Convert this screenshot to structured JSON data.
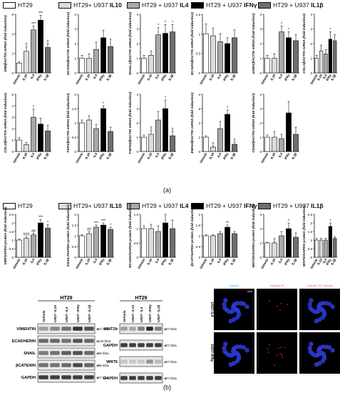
{
  "colors": {
    "ht29": "#ffffff",
    "il10": "#dcdcdc",
    "il4": "#a8a8a8",
    "ifng": "#000000",
    "il1b": "#6e6e6e",
    "fluor_blue": "#2a3bd6",
    "fluor_red": "#d42020"
  },
  "legend": [
    {
      "prefix": "HT29",
      "bold": "",
      "color": "#ffffff"
    },
    {
      "prefix": "HT29+ U937 ",
      "bold": "IL10",
      "color": "#dcdcdc"
    },
    {
      "prefix": "HT29 + U937 ",
      "bold": "IL4",
      "color": "#a8a8a8"
    },
    {
      "prefix": "HT29 + U937 ",
      "bold": "IFNγ",
      "color": "#000000"
    },
    {
      "prefix": "HT29 + U937 ",
      "bold": "IL1β",
      "color": "#6e6e6e"
    }
  ],
  "panel_labels": {
    "a": "(a)",
    "b": "(b)"
  },
  "chart_data": [
    {
      "type": "bar",
      "ylabel": "VIM/βACTIN mRNA (fold induction)",
      "categories": [
        "Vehicle",
        "IL10",
        "IL4",
        "IFNγ",
        "IL1β"
      ],
      "values": [
        1.0,
        2.2,
        4.4,
        5.4,
        2.6
      ],
      "errors": [
        0.15,
        0.5,
        0.4,
        0.5,
        0.4
      ],
      "ylim": [
        0,
        6
      ],
      "yticks": [
        0,
        2,
        4,
        6
      ],
      "annotations": [
        "",
        "#",
        "***",
        "***",
        "#"
      ]
    },
    {
      "type": "bar",
      "ylabel": "NCADH/βACTIN mRNA (fold induction)",
      "categories": [
        "Vehicle",
        "IL10",
        "IL4",
        "IFNγ",
        "IL1β"
      ],
      "values": [
        1.0,
        1.0,
        1.6,
        2.4,
        1.8
      ],
      "errors": [
        0.2,
        0.3,
        0.5,
        0.5,
        0.5
      ],
      "ylim": [
        0,
        4
      ],
      "yticks": [
        0,
        1,
        2,
        3,
        4
      ],
      "annotations": [
        "",
        "",
        "",
        "",
        ""
      ]
    },
    {
      "type": "bar",
      "ylabel": "SNAIL1/βACTIN mRNA (fold induction)",
      "categories": [
        "Vehicle",
        "IL10",
        "IL4",
        "IFNγ",
        "IL1β"
      ],
      "values": [
        1.0,
        1.2,
        2.6,
        2.7,
        2.8
      ],
      "errors": [
        0.2,
        0.3,
        0.5,
        0.6,
        0.5
      ],
      "ylim": [
        0,
        4
      ],
      "yticks": [
        0,
        1,
        2,
        3,
        4
      ],
      "annotations": [
        "",
        "",
        "*",
        "*",
        "*"
      ]
    },
    {
      "type": "bar",
      "ylabel": "ECADH/βACTIN mRNA (fold induction)",
      "categories": [
        "Vehicle",
        "IL10",
        "IL4",
        "IFNγ",
        "IL1β"
      ],
      "values": [
        1.0,
        0.95,
        0.8,
        0.75,
        0.9
      ],
      "errors": [
        0.25,
        0.2,
        0.2,
        0.15,
        0.2
      ],
      "ylim": [
        0,
        1.5
      ],
      "yticks": [
        0,
        0.5,
        1.0,
        1.5
      ],
      "annotations": [
        "",
        "",
        "",
        "",
        ""
      ]
    },
    {
      "type": "bar",
      "ylabel": "αSMA/βACTIN mRNA (fold induction)",
      "categories": [
        "Vehicle",
        "IL10",
        "IL4",
        "IFNγ",
        "IL1β"
      ],
      "values": [
        1.0,
        1.0,
        2.8,
        2.4,
        2.2
      ],
      "errors": [
        0.2,
        0.3,
        0.4,
        0.4,
        0.4
      ],
      "ylim": [
        0,
        4
      ],
      "yticks": [
        0,
        1,
        2,
        3,
        4
      ],
      "annotations": [
        "",
        "",
        "*",
        "*",
        ""
      ]
    },
    {
      "type": "bar",
      "ylabel": "COL1/βACTIN mRNA (fold induction)",
      "categories": [
        "Vehicle",
        "IL10",
        "IL4",
        "IFNγ",
        "IL1β"
      ],
      "values": [
        1.0,
        1.5,
        1.3,
        2.3,
        2.2
      ],
      "errors": [
        0.2,
        0.4,
        0.3,
        0.5,
        0.4
      ],
      "ylim": [
        0,
        4
      ],
      "yticks": [
        0,
        1,
        2,
        3,
        4
      ],
      "annotations": [
        "",
        "",
        "",
        "*",
        ""
      ]
    },
    {
      "type": "bar",
      "ylabel": "COL2/βACTIN mRNA (fold induction)",
      "categories": [
        "Vehicle",
        "IL10",
        "IL4",
        "IFNγ",
        "IL1β"
      ],
      "values": [
        1.0,
        0.6,
        3.0,
        2.4,
        1.8
      ],
      "errors": [
        0.2,
        0.2,
        0.7,
        0.5,
        0.5
      ],
      "ylim": [
        0,
        5
      ],
      "yticks": [
        0,
        1,
        2,
        3,
        4,
        5
      ],
      "annotations": [
        "",
        "",
        "*",
        "",
        ""
      ]
    },
    {
      "type": "bar",
      "ylabel": "FSP1/βACTIN mRNA (fold induction)",
      "categories": [
        "Vehicle",
        "IL10",
        "IL4",
        "IFNγ",
        "IL1β"
      ],
      "values": [
        1.0,
        1.1,
        0.8,
        1.5,
        0.7
      ],
      "errors": [
        0.1,
        0.15,
        0.15,
        0.1,
        0.15
      ],
      "ylim": [
        0,
        2.0
      ],
      "yticks": [
        0,
        0.5,
        1.0,
        1.5,
        2.0
      ],
      "annotations": [
        "",
        "",
        "",
        "*",
        ""
      ]
    },
    {
      "type": "bar",
      "ylabel": "FGFR2/βACTIN mRNA (fold induction)",
      "categories": [
        "Vehicle",
        "IL10",
        "IL4",
        "IFNγ",
        "IL1β"
      ],
      "values": [
        1.0,
        1.2,
        2.2,
        3.0,
        1.1
      ],
      "errors": [
        0.15,
        0.3,
        0.6,
        0.6,
        0.3
      ],
      "ylim": [
        0,
        4
      ],
      "yticks": [
        0,
        1,
        2,
        3,
        4
      ],
      "annotations": [
        "",
        "#",
        "",
        "*",
        "#"
      ]
    },
    {
      "type": "bar",
      "ylabel": "EMAH/βACTIN mRNA (fold induction)",
      "categories": [
        "Vehicle",
        "IL10",
        "IL4",
        "IFNγ",
        "IL1β"
      ],
      "values": [
        1.0,
        0.3,
        1.6,
        2.6,
        0.5
      ],
      "errors": [
        0.1,
        0.1,
        0.5,
        0.3,
        0.15
      ],
      "ylim": [
        0,
        4
      ],
      "yticks": [
        0,
        1,
        2,
        3,
        4
      ],
      "annotations": [
        "",
        "#",
        "",
        "*",
        "#"
      ]
    },
    {
      "type": "bar",
      "ylabel": "CD44/βACTIN mRNA (fold induction)",
      "categories": [
        "Vehicle",
        "IL10",
        "IL4",
        "IFNγ",
        "IL1β"
      ],
      "values": [
        1.0,
        1.0,
        0.9,
        2.7,
        1.2
      ],
      "errors": [
        0.15,
        0.4,
        0.3,
        0.8,
        0.5
      ],
      "ylim": [
        0,
        4
      ],
      "yticks": [
        0,
        1,
        2,
        3,
        4
      ],
      "annotations": [
        "",
        "",
        "",
        "",
        ""
      ]
    },
    {
      "type": "bar",
      "ylabel": "VIM/GAPDH protein (fold induction)",
      "categories": [
        "Vehicle",
        "IL10",
        "IL4",
        "IFNγ",
        "IL1β"
      ],
      "values": [
        1.0,
        1.1,
        1.3,
        2.0,
        1.7
      ],
      "errors": [
        0.05,
        0.1,
        0.1,
        0.2,
        0.2
      ],
      "ylim": [
        0,
        2.5
      ],
      "yticks": [
        0,
        0.5,
        1.0,
        1.5,
        2.0,
        2.5
      ],
      "annotations": [
        "",
        "###",
        "##",
        "***",
        "*"
      ]
    },
    {
      "type": "bar",
      "ylabel": "SNAIL/GAPDH protein (fold induction)",
      "categories": [
        "Vehicle",
        "IL10",
        "IL4",
        "IFNγ",
        "IL1β"
      ],
      "values": [
        1.0,
        1.1,
        1.4,
        1.5,
        1.3
      ],
      "errors": [
        0.05,
        0.1,
        0.1,
        0.1,
        0.1
      ],
      "ylim": [
        0,
        2.0
      ],
      "yticks": [
        0,
        0.5,
        1.0,
        1.5,
        2.0
      ],
      "annotations": [
        "",
        "##",
        "***",
        "***",
        "*"
      ]
    },
    {
      "type": "bar",
      "ylabel": "ECADH/GAPDH protein (fold induction)",
      "categories": [
        "Vehicle",
        "IL10",
        "IL4",
        "IFNγ",
        "IL1β"
      ],
      "values": [
        1.0,
        1.0,
        0.9,
        1.2,
        1.0
      ],
      "errors": [
        0.1,
        0.15,
        0.2,
        0.3,
        0.3
      ],
      "ylim": [
        0,
        1.5
      ],
      "yticks": [
        0,
        0.5,
        1.0,
        1.5
      ],
      "annotations": [
        "",
        "",
        "",
        "",
        ""
      ]
    },
    {
      "type": "bar",
      "ylabel": "βCAT/GAPDH protein (fold induction)",
      "categories": [
        "Vehicle",
        "IL10",
        "IL4",
        "IFNγ",
        "IL1β"
      ],
      "values": [
        1.0,
        1.0,
        1.1,
        1.4,
        1.1
      ],
      "errors": [
        0.05,
        0.05,
        0.1,
        0.1,
        0.1
      ],
      "ylim": [
        0,
        2.0
      ],
      "yticks": [
        0,
        0.5,
        1.0,
        1.5,
        2.0
      ],
      "annotations": [
        "",
        "",
        "",
        "**",
        ""
      ]
    },
    {
      "type": "bar",
      "ylabel": "WNT2b/GAPDH protein (fold induction)",
      "categories": [
        "Vehicle",
        "IL10",
        "IL4",
        "IFNγ",
        "IL1β"
      ],
      "values": [
        1.0,
        1.0,
        1.5,
        2.0,
        1.4
      ],
      "errors": [
        0.05,
        0.1,
        0.3,
        0.4,
        0.3
      ],
      "ylim": [
        0,
        3
      ],
      "yticks": [
        0,
        1,
        2,
        3
      ],
      "annotations": [
        "",
        "#",
        "",
        "*",
        ""
      ]
    },
    {
      "type": "bar",
      "ylabel": "WNT6/GAPDH protein (fold induction)",
      "categories": [
        "Vehicle",
        "IL10",
        "IL4",
        "IFNγ",
        "IL1β"
      ],
      "values": [
        1.0,
        1.0,
        1.0,
        1.8,
        1.1
      ],
      "errors": [
        0.1,
        0.1,
        0.1,
        0.2,
        0.1
      ],
      "ylim": [
        0,
        2.5
      ],
      "yticks": [
        0,
        0.5,
        1.0,
        1.5,
        2.0,
        2.5
      ],
      "annotations": [
        "",
        "",
        "",
        "*",
        ""
      ]
    }
  ],
  "blots": {
    "left": {
      "cell_line": "HT29",
      "lanes": [
        "Vehicle",
        "U937- IL10",
        "U937- IL4",
        "U937- IFNγ",
        "U937- IL1β"
      ],
      "rows": [
        {
          "label": "VIMENTIN",
          "kda": "57 kDa",
          "intensity": [
            0.35,
            0.45,
            0.55,
            0.85,
            0.7
          ]
        },
        {
          "label": "ECADHERIN",
          "kda": "120 kDa",
          "intensity": [
            0.6,
            0.6,
            0.55,
            0.7,
            0.6
          ]
        },
        {
          "label": "SNAIL",
          "kda": "30 kDa",
          "intensity": [
            0.5,
            0.55,
            0.65,
            0.7,
            0.6
          ]
        },
        {
          "label": "βCATENIN",
          "kda": "85 kDa",
          "intensity": [
            0.55,
            0.55,
            0.6,
            0.75,
            0.6
          ]
        },
        {
          "label": "GAPDH",
          "kda": "37 kDa",
          "intensity": [
            0.8,
            0.8,
            0.8,
            0.8,
            0.8
          ]
        }
      ]
    },
    "middle": {
      "cell_line": "HT29",
      "lanes": [
        "Vehicle",
        "U937- IL10",
        "U937- IL4",
        "U937- IFNγ",
        "U937- IL1β"
      ],
      "rows": [
        {
          "label": "WNT2b",
          "kda": "37 kDa",
          "intensity": [
            0.35,
            0.3,
            0.5,
            0.9,
            0.5
          ]
        },
        {
          "label": "GAPDH",
          "kda": "37 kDa",
          "intensity": [
            0.8,
            0.8,
            0.8,
            0.8,
            0.8
          ]
        },
        {
          "label": "WNT6",
          "kda": "37 kDa",
          "intensity": [
            0.15,
            0.15,
            0.15,
            0.4,
            0.2
          ]
        },
        {
          "label": "GAPDH",
          "kda": "37 kDa",
          "intensity": [
            0.8,
            0.8,
            0.8,
            0.8,
            0.8
          ]
        }
      ]
    }
  },
  "microscopy": {
    "col_headers": [
      "Hoechst",
      "Vimentin-TR",
      "Vimentin-TR+ Hoechst"
    ],
    "row_labels": [
      "U937-IL4",
      "U937-IFNγ"
    ]
  }
}
